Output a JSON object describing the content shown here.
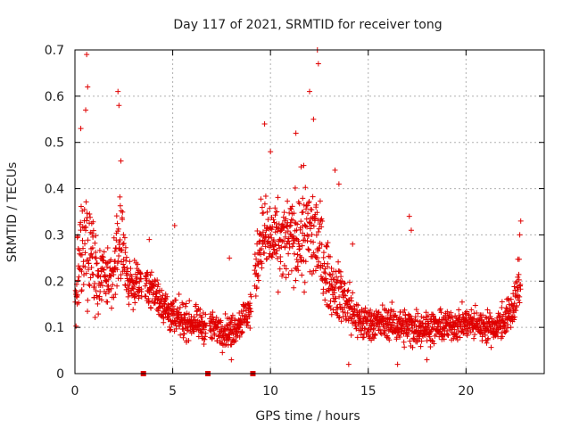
{
  "chart_data": {
    "type": "scatter",
    "title": "Day 117 of 2021, SRMTID for receiver tong",
    "xlabel": "GPS time / hours",
    "ylabel": "SRMTID / TECUs",
    "xlim": [
      0,
      24
    ],
    "ylim": [
      0,
      0.7
    ],
    "xticks": [
      0,
      5,
      10,
      15,
      20
    ],
    "xtick_labels": [
      "0",
      "5",
      "10",
      "15",
      "20"
    ],
    "yticks": [
      0,
      0.1,
      0.2,
      0.3,
      0.4,
      0.5,
      0.6,
      0.7
    ],
    "ytick_labels": [
      "0",
      "0.1",
      "0.2",
      "0.3",
      "0.4",
      "0.5",
      "0.6",
      "0.7"
    ],
    "grid": true,
    "colors": {
      "points": "#e00000",
      "grid": "#b0b0b0",
      "axis": "#000000"
    },
    "marker": "plus",
    "gap_markers_x": [
      3.5,
      6.8,
      9.1
    ],
    "series": [
      {
        "name": "SRMTID",
        "approx_profile": [
          {
            "t": 0.0,
            "mean": 0.16,
            "spread": 0.07
          },
          {
            "t": 0.5,
            "mean": 0.3,
            "spread": 0.18
          },
          {
            "t": 1.0,
            "mean": 0.22,
            "spread": 0.1
          },
          {
            "t": 1.8,
            "mean": 0.2,
            "spread": 0.08
          },
          {
            "t": 2.3,
            "mean": 0.28,
            "spread": 0.15
          },
          {
            "t": 2.7,
            "mean": 0.2,
            "spread": 0.06
          },
          {
            "t": 3.5,
            "mean": 0.2,
            "spread": 0.05
          },
          {
            "t": 4.2,
            "mean": 0.17,
            "spread": 0.05
          },
          {
            "t": 5.0,
            "mean": 0.12,
            "spread": 0.05
          },
          {
            "t": 6.0,
            "mean": 0.11,
            "spread": 0.04
          },
          {
            "t": 7.0,
            "mean": 0.1,
            "spread": 0.04
          },
          {
            "t": 8.0,
            "mean": 0.09,
            "spread": 0.04
          },
          {
            "t": 9.0,
            "mean": 0.14,
            "spread": 0.05
          },
          {
            "t": 9.5,
            "mean": 0.3,
            "spread": 0.1
          },
          {
            "t": 10.5,
            "mean": 0.28,
            "spread": 0.1
          },
          {
            "t": 11.5,
            "mean": 0.3,
            "spread": 0.12
          },
          {
            "t": 12.3,
            "mean": 0.3,
            "spread": 0.15
          },
          {
            "t": 13.0,
            "mean": 0.2,
            "spread": 0.07
          },
          {
            "t": 13.8,
            "mean": 0.16,
            "spread": 0.08
          },
          {
            "t": 14.5,
            "mean": 0.11,
            "spread": 0.05
          },
          {
            "t": 16.0,
            "mean": 0.11,
            "spread": 0.04
          },
          {
            "t": 17.0,
            "mean": 0.1,
            "spread": 0.05
          },
          {
            "t": 18.5,
            "mean": 0.1,
            "spread": 0.04
          },
          {
            "t": 20.0,
            "mean": 0.11,
            "spread": 0.04
          },
          {
            "t": 21.5,
            "mean": 0.1,
            "spread": 0.04
          },
          {
            "t": 22.3,
            "mean": 0.13,
            "spread": 0.05
          },
          {
            "t": 22.8,
            "mean": 0.2,
            "spread": 0.08
          }
        ],
        "notable_points": [
          [
            0.6,
            0.69
          ],
          [
            0.65,
            0.62
          ],
          [
            0.55,
            0.57
          ],
          [
            0.3,
            0.53
          ],
          [
            2.2,
            0.61
          ],
          [
            2.25,
            0.58
          ],
          [
            2.35,
            0.46
          ],
          [
            3.8,
            0.29
          ],
          [
            5.1,
            0.32
          ],
          [
            7.9,
            0.25
          ],
          [
            9.7,
            0.54
          ],
          [
            10.0,
            0.48
          ],
          [
            11.3,
            0.52
          ],
          [
            11.7,
            0.45
          ],
          [
            12.0,
            0.61
          ],
          [
            12.2,
            0.55
          ],
          [
            12.4,
            0.7
          ],
          [
            12.45,
            0.67
          ],
          [
            13.3,
            0.44
          ],
          [
            13.5,
            0.41
          ],
          [
            14.2,
            0.28
          ],
          [
            17.1,
            0.34
          ],
          [
            17.2,
            0.31
          ],
          [
            22.8,
            0.33
          ],
          [
            22.75,
            0.3
          ],
          [
            14.0,
            0.02
          ],
          [
            8.0,
            0.03
          ],
          [
            16.5,
            0.02
          ],
          [
            18.0,
            0.03
          ]
        ]
      }
    ]
  }
}
